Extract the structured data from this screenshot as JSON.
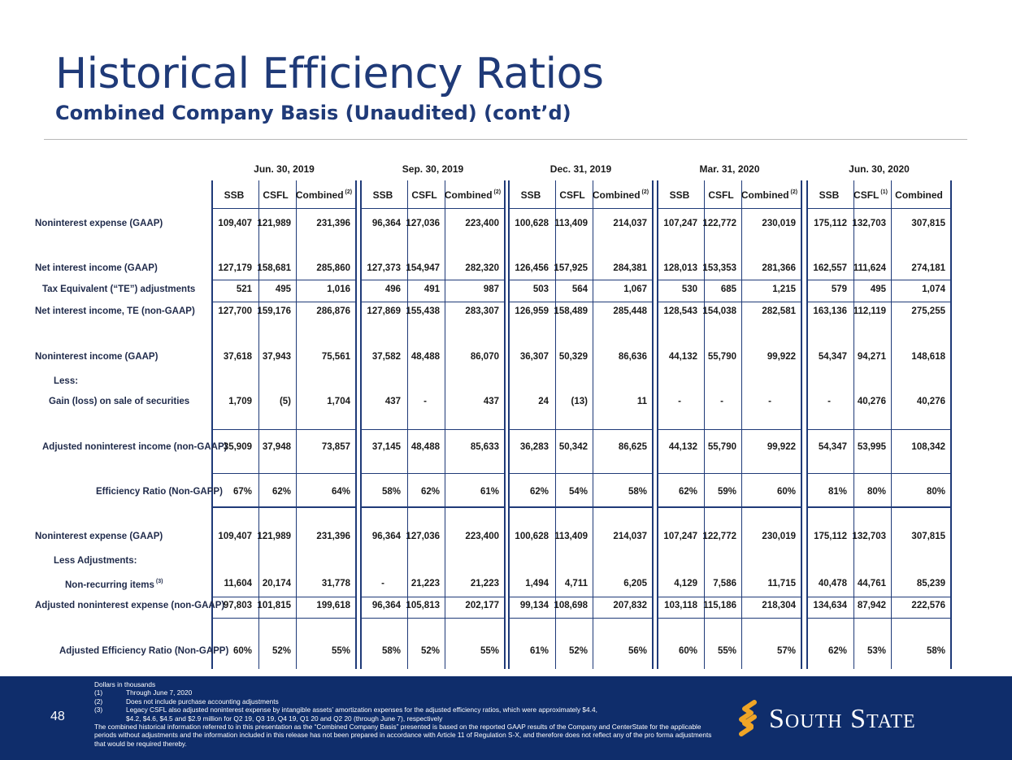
{
  "title": "Historical Efficiency Ratios",
  "subtitle": "Combined Company Basis (Unaudited) (cont’d)",
  "periods": [
    "Jun. 30, 2019",
    "Sep. 30, 2019",
    "Dec. 31, 2019",
    "Mar. 31, 2020",
    "Jun. 30, 2020"
  ],
  "column_headers": [
    [
      {
        "label": "SSB",
        "sup": ""
      },
      {
        "label": "CSFL",
        "sup": ""
      },
      {
        "label": "Combined",
        "sup": "(2)"
      }
    ],
    [
      {
        "label": "SSB",
        "sup": ""
      },
      {
        "label": "CSFL",
        "sup": ""
      },
      {
        "label": "Combined",
        "sup": "(2)"
      }
    ],
    [
      {
        "label": "SSB",
        "sup": ""
      },
      {
        "label": "CSFL",
        "sup": ""
      },
      {
        "label": "Combined",
        "sup": "(2)"
      }
    ],
    [
      {
        "label": "SSB",
        "sup": ""
      },
      {
        "label": "CSFL",
        "sup": ""
      },
      {
        "label": "Combined",
        "sup": "(2)"
      }
    ],
    [
      {
        "label": "SSB",
        "sup": ""
      },
      {
        "label": "CSFL",
        "sup": "(1)"
      },
      {
        "label": "Combined",
        "sup": ""
      }
    ]
  ],
  "rows": [
    {
      "label": "Noninterest expense (GAAP)",
      "sup": "",
      "values": [
        [
          "109,407",
          "121,989",
          "231,396"
        ],
        [
          "96,364",
          "127,036",
          "223,400"
        ],
        [
          "100,628",
          "113,409",
          "214,037"
        ],
        [
          "107,247",
          "122,772",
          "230,019"
        ],
        [
          "175,112",
          "132,703",
          "307,815"
        ]
      ]
    },
    {
      "label": "Net interest income (GAAP)",
      "sup": "",
      "values": [
        [
          "127,179",
          "158,681",
          "285,860"
        ],
        [
          "127,373",
          "154,947",
          "282,320"
        ],
        [
          "126,456",
          "157,925",
          "284,381"
        ],
        [
          "128,013",
          "153,353",
          "281,366"
        ],
        [
          "162,557",
          "111,624",
          "274,181"
        ]
      ]
    },
    {
      "label": "Tax Equivalent (“TE”) adjustments",
      "sup": "",
      "values": [
        [
          "521",
          "495",
          "1,016"
        ],
        [
          "496",
          "491",
          "987"
        ],
        [
          "503",
          "564",
          "1,067"
        ],
        [
          "530",
          "685",
          "1,215"
        ],
        [
          "579",
          "495",
          "1,074"
        ]
      ]
    },
    {
      "label": "Net interest income, TE (non-GAAP)",
      "sup": "",
      "values": [
        [
          "127,700",
          "159,176",
          "286,876"
        ],
        [
          "127,869",
          "155,438",
          "283,307"
        ],
        [
          "126,959",
          "158,489",
          "285,448"
        ],
        [
          "128,543",
          "154,038",
          "282,581"
        ],
        [
          "163,136",
          "112,119",
          "275,255"
        ]
      ]
    },
    {
      "label": "Noninterest income (GAAP)",
      "sup": "",
      "values": [
        [
          "37,618",
          "37,943",
          "75,561"
        ],
        [
          "37,582",
          "48,488",
          "86,070"
        ],
        [
          "36,307",
          "50,329",
          "86,636"
        ],
        [
          "44,132",
          "55,790",
          "99,922"
        ],
        [
          "54,347",
          "94,271",
          "148,618"
        ]
      ]
    },
    {
      "label": "Less:",
      "sup": "",
      "values": []
    },
    {
      "label": "Gain (loss) on sale of securities",
      "sup": "",
      "values": [
        [
          "1,709",
          "(5)",
          "1,704"
        ],
        [
          "437",
          "-",
          "437"
        ],
        [
          "24",
          "(13)",
          "11"
        ],
        [
          "-",
          "-",
          "-"
        ],
        [
          "-",
          "40,276",
          "40,276"
        ]
      ]
    },
    {
      "label": "Adjusted noninterest income (non-GAAP)",
      "sup": "",
      "values": [
        [
          "35,909",
          "37,948",
          "73,857"
        ],
        [
          "37,145",
          "48,488",
          "85,633"
        ],
        [
          "36,283",
          "50,342",
          "86,625"
        ],
        [
          "44,132",
          "55,790",
          "99,922"
        ],
        [
          "54,347",
          "53,995",
          "108,342"
        ]
      ]
    },
    {
      "label": "Efficiency Ratio (Non-GAPP)",
      "sup": "",
      "values": [
        [
          "67%",
          "62%",
          "64%"
        ],
        [
          "58%",
          "62%",
          "61%"
        ],
        [
          "62%",
          "54%",
          "58%"
        ],
        [
          "62%",
          "59%",
          "60%"
        ],
        [
          "81%",
          "80%",
          "80%"
        ]
      ]
    },
    {
      "label": "Noninterest expense (GAAP)",
      "sup": "",
      "values": [
        [
          "109,407",
          "121,989",
          "231,396"
        ],
        [
          "96,364",
          "127,036",
          "223,400"
        ],
        [
          "100,628",
          "113,409",
          "214,037"
        ],
        [
          "107,247",
          "122,772",
          "230,019"
        ],
        [
          "175,112",
          "132,703",
          "307,815"
        ]
      ]
    },
    {
      "label": "Less Adjustments:",
      "sup": "",
      "values": []
    },
    {
      "label": "Non-recurring items",
      "sup": "(3)",
      "values": [
        [
          "11,604",
          "20,174",
          "31,778"
        ],
        [
          "-",
          "21,223",
          "21,223"
        ],
        [
          "1,494",
          "4,711",
          "6,205"
        ],
        [
          "4,129",
          "7,586",
          "11,715"
        ],
        [
          "40,478",
          "44,761",
          "85,239"
        ]
      ]
    },
    {
      "label": "Adjusted noninterest expense (non-GAAP)",
      "sup": "",
      "values": [
        [
          "97,803",
          "101,815",
          "199,618"
        ],
        [
          "96,364",
          "105,813",
          "202,177"
        ],
        [
          "99,134",
          "108,698",
          "207,832"
        ],
        [
          "103,118",
          "115,186",
          "218,304"
        ],
        [
          "134,634",
          "87,942",
          "222,576"
        ]
      ]
    },
    {
      "label": "Adjusted Efficiency Ratio (Non-GAPP)",
      "sup": "",
      "values": [
        [
          "60%",
          "52%",
          "55%"
        ],
        [
          "58%",
          "52%",
          "55%"
        ],
        [
          "61%",
          "52%",
          "56%"
        ],
        [
          "60%",
          "55%",
          "57%"
        ],
        [
          "62%",
          "53%",
          "58%"
        ]
      ]
    }
  ],
  "footer": {
    "page_number": "48",
    "notes_title": "Dollars in thousands",
    "notes": [
      {
        "num": "(1)",
        "text": "Through June 7, 2020"
      },
      {
        "num": "(2)",
        "text": "Does not include purchase accounting adjustments"
      },
      {
        "num": "(3)",
        "text": "Legacy CSFL also adjusted noninterest expense by intangible assets’ amortization expenses for the adjusted efficiency ratios, which were approximately $4.4,"
      }
    ],
    "note3_cont": "$4.2, $4.6, $4.5 and $2.9 million for Q2 19, Q3 19, Q4 19, Q1 20 and Q2 20 (through June 7), respectively",
    "disclaimer": "The combined historical information referred to in this presentation as the “Combined Company Basis” presented is based on the reported GAAP results of the Company and CenterState for the applicable periods without adjustments and the information included in this release has not been prepared in accordance with Article 11 of Regulation S-X, and therefore does not reflect any of the pro forma adjustments that would be required thereby.",
    "logo_text": "South State"
  }
}
